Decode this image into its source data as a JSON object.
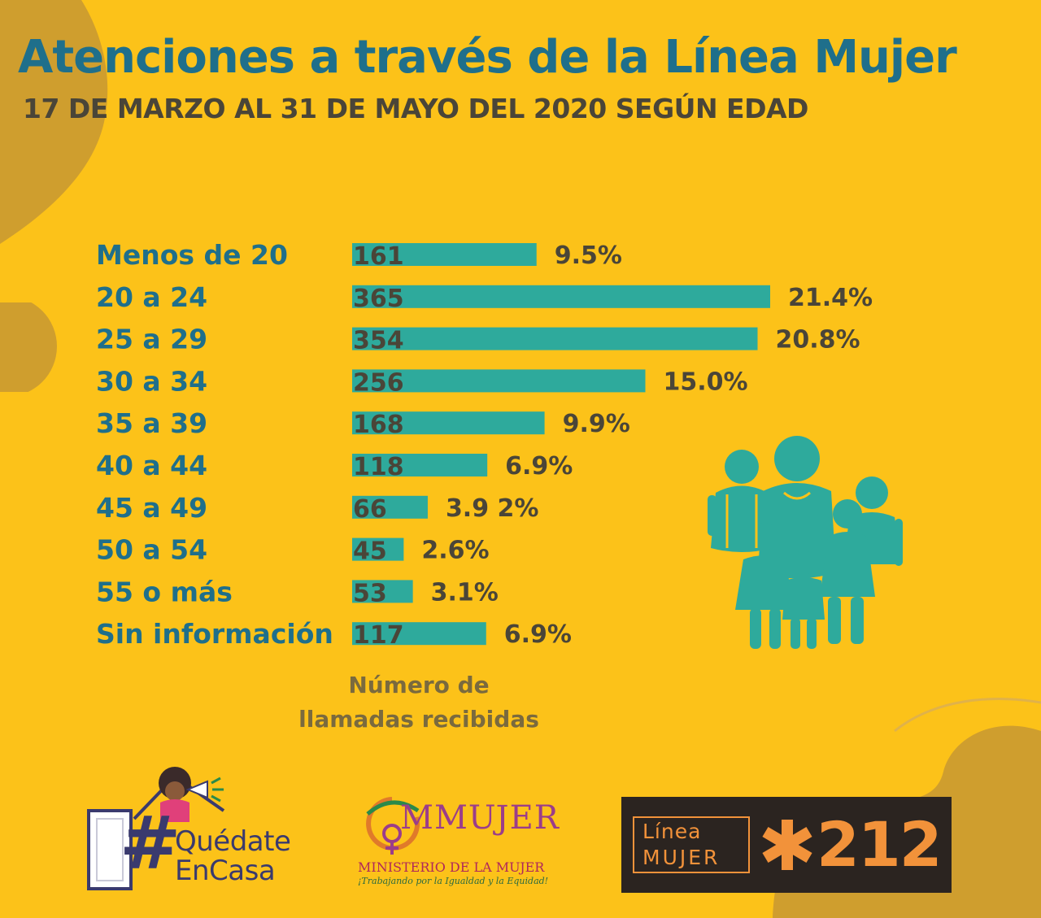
{
  "title": "Atenciones a través de la Línea Mujer",
  "subtitle": "17 DE MARZO AL 31 DE MAYO DEL 2020 SEGÚN EDAD",
  "colors": {
    "background": "#fcc219",
    "bar": "#2eaa9c",
    "title": "#1f6f8b",
    "text": "#4a4538",
    "accent": "#f2923a"
  },
  "chart_data": {
    "type": "bar",
    "orientation": "horizontal",
    "categories": [
      "Menos de 20",
      "20 a 24",
      "25 a 29",
      "30 a 34",
      "35 a 39",
      "40 a 44",
      "45 a 49",
      "50 a 54",
      "55 o más",
      "Sin información"
    ],
    "values": [
      161,
      365,
      354,
      256,
      168,
      118,
      66,
      45,
      53,
      117
    ],
    "value_labels": [
      "161",
      "365",
      "354",
      "256",
      "168",
      "118",
      "66",
      "45",
      "53",
      "117"
    ],
    "percent_labels": [
      "9.5%",
      "21.4%",
      "20.8%",
      "15.0%",
      "9.9%",
      "6.9%",
      "3.9 2%",
      "2.6%",
      "3.1%",
      "6.9%"
    ],
    "xlabel": [
      "Número de",
      "llamadas recibidas"
    ],
    "xlim": [
      0,
      365
    ],
    "grid": false,
    "legend": "none"
  },
  "illustration": {
    "icon": "family-group-icon"
  },
  "logos": {
    "quedate": {
      "hash": "#",
      "line1": "Quédate",
      "line2": "EnCasa"
    },
    "ministerio": {
      "word": "MMUJER",
      "org": "MINISTERIO DE LA MUJER",
      "slogan": "¡Trabajando por la Igualdad y la Equidad!"
    },
    "linea": {
      "line1": "Línea",
      "line2": "MUJER",
      "number": "212"
    }
  }
}
